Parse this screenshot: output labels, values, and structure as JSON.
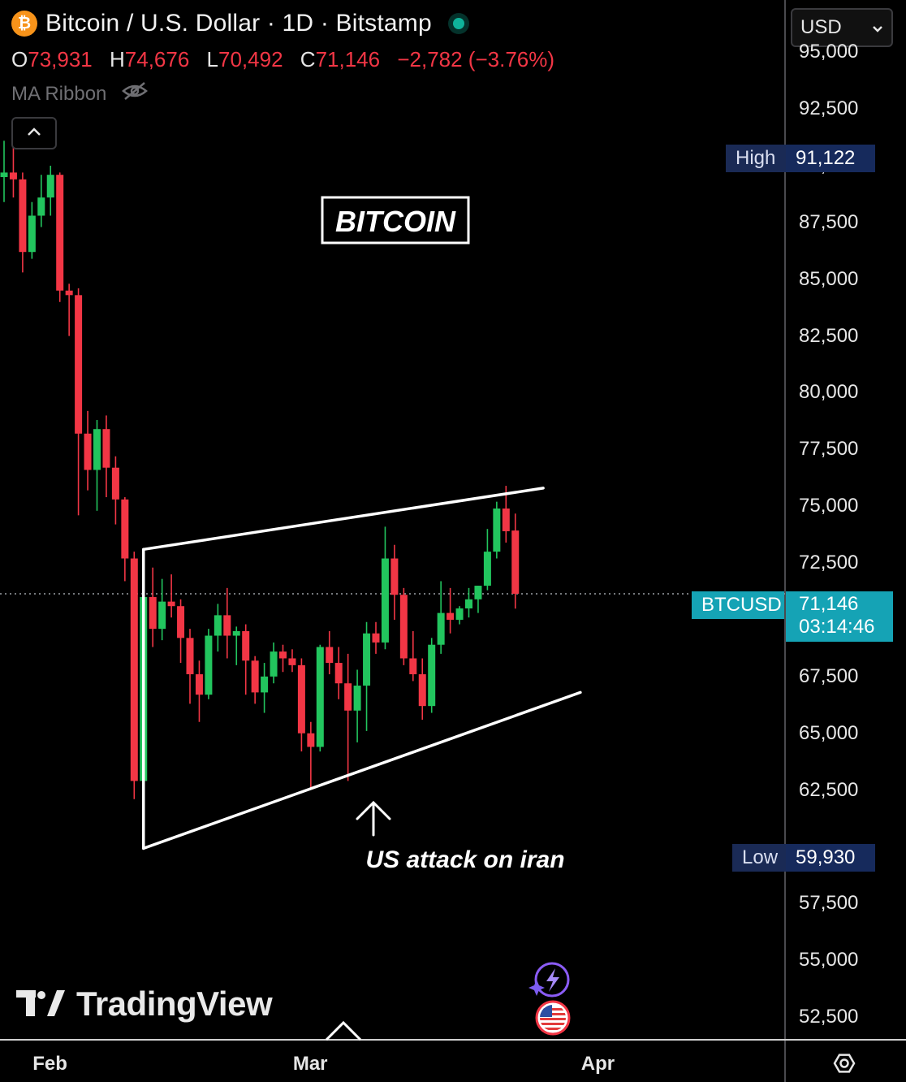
{
  "header": {
    "coin_glyph": "₿",
    "title": "Bitcoin / U.S. Dollar · 1D · Bitstamp",
    "ohlc": {
      "o_key": "O",
      "o_val": "73,931",
      "h_key": "H",
      "h_val": "74,676",
      "l_key": "L",
      "l_val": "70,492",
      "c_key": "C",
      "c_val": "71,146",
      "change": "−2,782 (−3.76%)"
    },
    "indicator_label": "MA Ribbon"
  },
  "currency_select": {
    "value": "USD"
  },
  "price_tags": {
    "high_label": "High",
    "high_value": "91,122",
    "low_label": "Low",
    "low_value": "59,930",
    "symbol_label": "BTCUSD",
    "last_value": "71,146",
    "countdown": "03:14:46"
  },
  "annotations": {
    "box_title": "BITCOIN",
    "event_note": "US attack on iran"
  },
  "branding": {
    "logo_text": "TradingView"
  },
  "colors": {
    "up": "#22c55e",
    "down": "#f23645",
    "background": "#000000",
    "tag_bg": "#162a5c",
    "last_tag_bg": "#15a3b5"
  },
  "icons": [
    "bitcoin-icon",
    "eye-off-icon",
    "chevron-up-icon",
    "chevron-down-icon",
    "lightning-sparkle-icon",
    "us-flag-icon",
    "settings-icon",
    "tradingview-logo-icon"
  ],
  "chart_data": {
    "type": "candlestick",
    "title": "Bitcoin / U.S. Dollar · 1D · Bitstamp",
    "y_ticks": [
      52500,
      55000,
      57500,
      60000,
      62500,
      65000,
      67500,
      70000,
      72500,
      75000,
      77500,
      80000,
      82500,
      85000,
      87500,
      90000,
      92500,
      95000
    ],
    "y_tick_labels": [
      "52,500",
      "55,000",
      "57,500",
      "",
      "62,500",
      "65,000",
      "67,500",
      "",
      "72,500",
      "75,000",
      "77,500",
      "80,000",
      "82,500",
      "85,000",
      "87,500",
      "90,000",
      "92,500",
      "95,000"
    ],
    "x_ticks": [
      {
        "day": 5,
        "label": "Feb"
      },
      {
        "day": 33,
        "label": "Mar"
      },
      {
        "day": 64,
        "label": "Apr"
      }
    ],
    "ylim": [
      51500,
      97300
    ],
    "grid": false,
    "last_price": 71146,
    "high_marker": 91122,
    "low_marker": 59930,
    "candles": [
      {
        "o": 89500,
        "h": 91100,
        "l": 88400,
        "c": 89700
      },
      {
        "o": 89700,
        "h": 90800,
        "l": 88600,
        "c": 89400
      },
      {
        "o": 89400,
        "h": 89700,
        "l": 85300,
        "c": 86200
      },
      {
        "o": 86200,
        "h": 88400,
        "l": 85900,
        "c": 87800
      },
      {
        "o": 87800,
        "h": 89600,
        "l": 87300,
        "c": 88600
      },
      {
        "o": 88600,
        "h": 90000,
        "l": 87800,
        "c": 89600
      },
      {
        "o": 89600,
        "h": 89700,
        "l": 84000,
        "c": 84500
      },
      {
        "o": 84500,
        "h": 84800,
        "l": 82500,
        "c": 84300
      },
      {
        "o": 84300,
        "h": 84600,
        "l": 74600,
        "c": 78200
      },
      {
        "o": 78200,
        "h": 79200,
        "l": 75700,
        "c": 76600
      },
      {
        "o": 76600,
        "h": 78800,
        "l": 74800,
        "c": 78400
      },
      {
        "o": 78400,
        "h": 79000,
        "l": 75400,
        "c": 76700
      },
      {
        "o": 76700,
        "h": 77200,
        "l": 74200,
        "c": 75300
      },
      {
        "o": 75300,
        "h": 75400,
        "l": 71700,
        "c": 72700
      },
      {
        "o": 72700,
        "h": 73000,
        "l": 62100,
        "c": 62900
      },
      {
        "o": 62900,
        "h": 72200,
        "l": 60000,
        "c": 71000
      },
      {
        "o": 71000,
        "h": 72300,
        "l": 68800,
        "c": 69600
      },
      {
        "o": 69600,
        "h": 71800,
        "l": 69100,
        "c": 70800
      },
      {
        "o": 70800,
        "h": 72000,
        "l": 70100,
        "c": 70600
      },
      {
        "o": 70600,
        "h": 70900,
        "l": 68100,
        "c": 69200
      },
      {
        "o": 69200,
        "h": 69600,
        "l": 66300,
        "c": 67600
      },
      {
        "o": 67600,
        "h": 68200,
        "l": 65500,
        "c": 66700
      },
      {
        "o": 66700,
        "h": 69600,
        "l": 66500,
        "c": 69300
      },
      {
        "o": 69300,
        "h": 70700,
        "l": 68600,
        "c": 70200
      },
      {
        "o": 70200,
        "h": 71400,
        "l": 68300,
        "c": 69300
      },
      {
        "o": 69300,
        "h": 69700,
        "l": 68000,
        "c": 69500
      },
      {
        "o": 69500,
        "h": 69800,
        "l": 66700,
        "c": 68200
      },
      {
        "o": 68200,
        "h": 68400,
        "l": 66300,
        "c": 66800
      },
      {
        "o": 66800,
        "h": 68100,
        "l": 65900,
        "c": 67500
      },
      {
        "o": 67500,
        "h": 69000,
        "l": 67200,
        "c": 68600
      },
      {
        "o": 68600,
        "h": 68900,
        "l": 67700,
        "c": 68300
      },
      {
        "o": 68300,
        "h": 68700,
        "l": 67700,
        "c": 68000
      },
      {
        "o": 68000,
        "h": 68300,
        "l": 64200,
        "c": 65000
      },
      {
        "o": 65000,
        "h": 65500,
        "l": 62600,
        "c": 64400
      },
      {
        "o": 64400,
        "h": 68900,
        "l": 64200,
        "c": 68800
      },
      {
        "o": 68800,
        "h": 69500,
        "l": 67600,
        "c": 68100
      },
      {
        "o": 68100,
        "h": 68800,
        "l": 66500,
        "c": 67200
      },
      {
        "o": 67200,
        "h": 68500,
        "l": 62900,
        "c": 66000
      },
      {
        "o": 66000,
        "h": 67800,
        "l": 64600,
        "c": 67100
      },
      {
        "o": 67100,
        "h": 69900,
        "l": 65100,
        "c": 69400
      },
      {
        "o": 69400,
        "h": 69900,
        "l": 68500,
        "c": 69000
      },
      {
        "o": 69000,
        "h": 74100,
        "l": 68700,
        "c": 72700
      },
      {
        "o": 72700,
        "h": 73300,
        "l": 70000,
        "c": 71100
      },
      {
        "o": 71100,
        "h": 71400,
        "l": 68000,
        "c": 68300
      },
      {
        "o": 68300,
        "h": 69500,
        "l": 67300,
        "c": 67600
      },
      {
        "o": 67600,
        "h": 68300,
        "l": 65600,
        "c": 66200
      },
      {
        "o": 66200,
        "h": 69200,
        "l": 65900,
        "c": 68900
      },
      {
        "o": 68900,
        "h": 71700,
        "l": 68500,
        "c": 70300
      },
      {
        "o": 70300,
        "h": 71400,
        "l": 69400,
        "c": 70000
      },
      {
        "o": 70000,
        "h": 70600,
        "l": 69800,
        "c": 70500
      },
      {
        "o": 70500,
        "h": 71400,
        "l": 70100,
        "c": 70900
      },
      {
        "o": 70900,
        "h": 71500,
        "l": 70300,
        "c": 71500
      },
      {
        "o": 71500,
        "h": 74000,
        "l": 71300,
        "c": 73000
      },
      {
        "o": 73000,
        "h": 75200,
        "l": 72700,
        "c": 74900
      },
      {
        "o": 74900,
        "h": 75900,
        "l": 73400,
        "c": 73900
      },
      {
        "o": 73931,
        "h": 74676,
        "l": 70492,
        "c": 71146
      }
    ],
    "trendlines": [
      {
        "name": "upper",
        "points": [
          [
            15,
            73100
          ],
          [
            58,
            75800
          ]
        ]
      },
      {
        "name": "lower",
        "points": [
          [
            15,
            59930
          ],
          [
            62,
            66800
          ]
        ]
      },
      {
        "name": "left",
        "points": [
          [
            15,
            59930
          ],
          [
            15,
            73100
          ]
        ]
      }
    ]
  }
}
